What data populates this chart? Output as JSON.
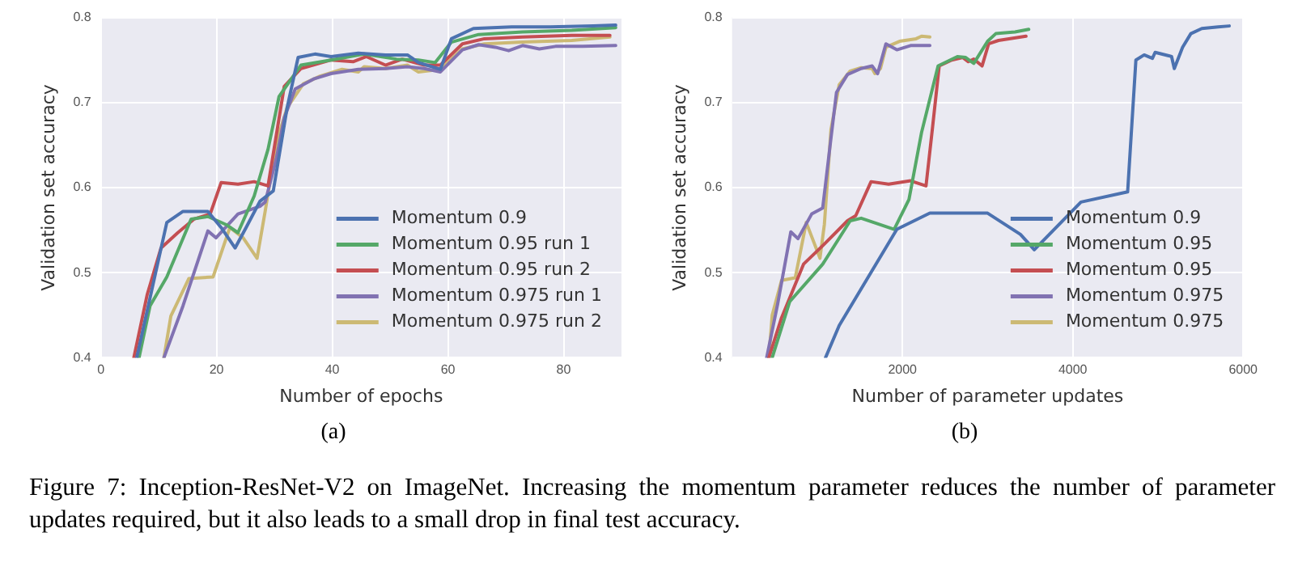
{
  "chart_data": [
    {
      "type": "line",
      "xlabel": "Number of epochs",
      "ylabel": "Validation set accuracy",
      "xlim": [
        0,
        90
      ],
      "xticks": [
        0,
        20,
        40,
        60,
        80
      ],
      "ylim": [
        0.4,
        0.8
      ],
      "yticks": [
        0.4,
        0.5,
        0.6,
        0.7,
        0.8
      ],
      "grid": true,
      "legend": "bottom right",
      "annotations": [
        "(a)"
      ],
      "series": [
        {
          "name": "Momentum 0.9",
          "color": "#4c72b0",
          "x": [
            6.2,
            11.4,
            14.2,
            18.5,
            20.8,
            23.2,
            25.1,
            27.5,
            29.8,
            32.2,
            34.1,
            37,
            39.8,
            44.5,
            49.2,
            53,
            54.9,
            58.7,
            60.6,
            64.4,
            71,
            77.7,
            85.2,
            89
          ],
          "values": [
            0.4,
            0.559,
            0.572,
            0.572,
            0.553,
            0.529,
            0.553,
            0.584,
            0.596,
            0.694,
            0.753,
            0.757,
            0.754,
            0.758,
            0.756,
            0.756,
            0.747,
            0.739,
            0.775,
            0.787,
            0.789,
            0.789,
            0.79,
            0.791
          ]
        },
        {
          "name": "Momentum 0.95 run 1",
          "color": "#55a868",
          "x": [
            6.6,
            8.5,
            11.4,
            15.6,
            18.5,
            21.8,
            23.7,
            26.5,
            28.9,
            30.8,
            34.6,
            39.8,
            45.5,
            51.1,
            54.9,
            57.8,
            60.6,
            65.3,
            72.9,
            81.4,
            89
          ],
          "values": [
            0.4,
            0.461,
            0.495,
            0.563,
            0.566,
            0.556,
            0.547,
            0.59,
            0.645,
            0.707,
            0.744,
            0.75,
            0.757,
            0.751,
            0.75,
            0.747,
            0.771,
            0.78,
            0.783,
            0.785,
            0.788
          ]
        },
        {
          "name": "Momentum 0.95 run 2",
          "color": "#c44e52",
          "x": [
            5.7,
            8,
            10.4,
            13.3,
            16.1,
            18.9,
            20.8,
            23.7,
            26.5,
            28.9,
            31.7,
            34.6,
            39.8,
            43.6,
            45.9,
            49.2,
            52.1,
            55.9,
            58.7,
            62.5,
            66.3,
            72.9,
            81.4,
            88
          ],
          "values": [
            0.4,
            0.474,
            0.529,
            0.547,
            0.563,
            0.569,
            0.606,
            0.604,
            0.607,
            0.602,
            0.719,
            0.74,
            0.75,
            0.748,
            0.754,
            0.744,
            0.751,
            0.744,
            0.744,
            0.769,
            0.775,
            0.777,
            0.779,
            0.779
          ]
        },
        {
          "name": "Momentum 0.975 run 1",
          "color": "#8172b2",
          "x": [
            10.9,
            14.2,
            18.5,
            19.9,
            23.7,
            27.5,
            28.4,
            30.3,
            31.7,
            33.6,
            36.9,
            39.8,
            44.5,
            49.2,
            53,
            55.9,
            58.7,
            62.5,
            65.3,
            68.2,
            70.5,
            72.9,
            75.8,
            78.6,
            83.3,
            89
          ],
          "values": [
            0.4,
            0.461,
            0.549,
            0.541,
            0.569,
            0.578,
            0.583,
            0.633,
            0.682,
            0.716,
            0.728,
            0.734,
            0.739,
            0.74,
            0.742,
            0.74,
            0.736,
            0.762,
            0.768,
            0.765,
            0.761,
            0.767,
            0.763,
            0.766,
            0.766,
            0.767
          ]
        },
        {
          "name": "Momentum 0.975 run 2",
          "color": "#ccb974",
          "x": [
            10.9,
            12.1,
            15.2,
            19.4,
            22.3,
            24.6,
            27,
            28.4,
            30.3,
            32.2,
            35,
            37.9,
            41.7,
            44.5,
            45.5,
            49.2,
            53,
            54.9,
            58.7,
            62.5,
            66.3,
            72.9,
            81.4,
            88
          ],
          "values": [
            0.4,
            0.449,
            0.493,
            0.495,
            0.553,
            0.541,
            0.517,
            0.572,
            0.652,
            0.694,
            0.722,
            0.731,
            0.739,
            0.736,
            0.742,
            0.74,
            0.744,
            0.736,
            0.739,
            0.763,
            0.769,
            0.771,
            0.773,
            0.777
          ]
        }
      ]
    },
    {
      "type": "line",
      "xlabel": "Number of parameter updates",
      "ylabel": "Validation set accuracy",
      "xlim": [
        0,
        6000
      ],
      "xticks": [
        2000,
        4000,
        6000
      ],
      "ylim": [
        0.4,
        0.8
      ],
      "yticks": [
        0.4,
        0.5,
        0.6,
        0.7,
        0.8
      ],
      "grid": true,
      "legend": "bottom right",
      "annotations": [
        "(b)",
        "Figure 7: Inception-ResNet-V2 on ImageNet.  Increasing the momentum parameter reduces the number of parameter updates required, but it also leads to a small drop in final test accuracy."
      ],
      "series": [
        {
          "name": "Momentum 0.9",
          "color": "#4c72b0",
          "x": [
            1097,
            1258,
            1935,
            2322,
            3000,
            3386,
            3548,
            4096,
            4644,
            4741,
            4838,
            4935,
            4967,
            5128,
            5160,
            5192,
            5289,
            5386,
            5515,
            5708,
            5837
          ],
          "values": [
            0.4,
            0.438,
            0.551,
            0.57,
            0.57,
            0.545,
            0.527,
            0.583,
            0.595,
            0.75,
            0.756,
            0.752,
            0.759,
            0.755,
            0.754,
            0.74,
            0.765,
            0.781,
            0.787,
            0.789,
            0.79
          ]
        },
        {
          "name": "Momentum 0.95",
          "color": "#55a868",
          "x": [
            471,
            677,
            1064,
            1387,
            1516,
            1903,
            2077,
            2225,
            2419,
            2645,
            2742,
            2838,
            3000,
            3096,
            3322,
            3483
          ],
          "values": [
            0.4,
            0.466,
            0.51,
            0.561,
            0.564,
            0.551,
            0.586,
            0.665,
            0.743,
            0.754,
            0.753,
            0.746,
            0.772,
            0.781,
            0.783,
            0.786
          ]
        },
        {
          "name": "Momentum 0.95",
          "color": "#c44e52",
          "x": [
            432,
            581,
            839,
            1097,
            1355,
            1452,
            1632,
            1838,
            2096,
            2277,
            2354,
            2432,
            2580,
            2709,
            2774,
            2838,
            2935,
            3012,
            3128,
            3451
          ],
          "values": [
            0.4,
            0.447,
            0.51,
            0.535,
            0.561,
            0.567,
            0.607,
            0.604,
            0.608,
            0.602,
            0.671,
            0.743,
            0.75,
            0.753,
            0.748,
            0.751,
            0.743,
            0.769,
            0.773,
            0.778
          ]
        },
        {
          "name": "Momentum 0.975",
          "color": "#8172b2",
          "x": [
            406,
            535,
            690,
            774,
            935,
            1064,
            1161,
            1226,
            1355,
            1516,
            1645,
            1709,
            1806,
            1935,
            2096,
            2322
          ],
          "values": [
            0.4,
            0.463,
            0.548,
            0.54,
            0.569,
            0.576,
            0.658,
            0.712,
            0.733,
            0.74,
            0.743,
            0.734,
            0.769,
            0.762,
            0.767,
            0.767
          ]
        },
        {
          "name": "Momentum 0.975",
          "color": "#ccb974",
          "x": [
            432,
            471,
            581,
            742,
            871,
            1032,
            1084,
            1161,
            1258,
            1387,
            1516,
            1645,
            1677,
            1742,
            1806,
            1967,
            2161,
            2225,
            2322
          ],
          "values": [
            0.4,
            0.45,
            0.491,
            0.494,
            0.559,
            0.517,
            0.557,
            0.668,
            0.721,
            0.737,
            0.741,
            0.74,
            0.734,
            0.74,
            0.765,
            0.772,
            0.775,
            0.778,
            0.777
          ]
        }
      ]
    }
  ]
}
